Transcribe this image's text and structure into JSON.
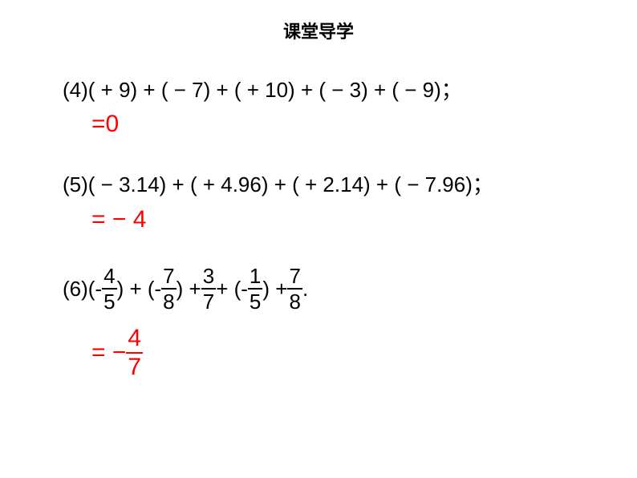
{
  "title": "课堂导学",
  "problems": {
    "p4": {
      "label": "(4)( + 9) + ( − 7) + ( + 10) + ( − 3) + ( − 9)；",
      "answer": "=0"
    },
    "p5": {
      "label": "(5)( − 3.14) + ( + 4.96) + ( + 2.14) + ( − 7.96)；",
      "answer": "=  − 4"
    },
    "p6": {
      "prefix": "(6)(- ",
      "f1": {
        "n": "4",
        "d": "5"
      },
      "seg1": ") + (- ",
      "f2": {
        "n": "7",
        "d": "8"
      },
      "seg2": ") + ",
      "f3": {
        "n": "3",
        "d": "7"
      },
      "seg3": "+ (- ",
      "f4": {
        "n": "1",
        "d": "5"
      },
      "seg4": ") + ",
      "f5": {
        "n": "7",
        "d": "8"
      },
      "suffix": " .",
      "answer_prefix": "=  − ",
      "answer_frac": {
        "n": "4",
        "d": "7"
      }
    }
  },
  "style": {
    "title_fontsize": 22,
    "body_fontsize": 26,
    "answer_fontsize": 30,
    "answer_color": "#ff0000",
    "text_color": "#000000",
    "background": "#ffffff"
  }
}
